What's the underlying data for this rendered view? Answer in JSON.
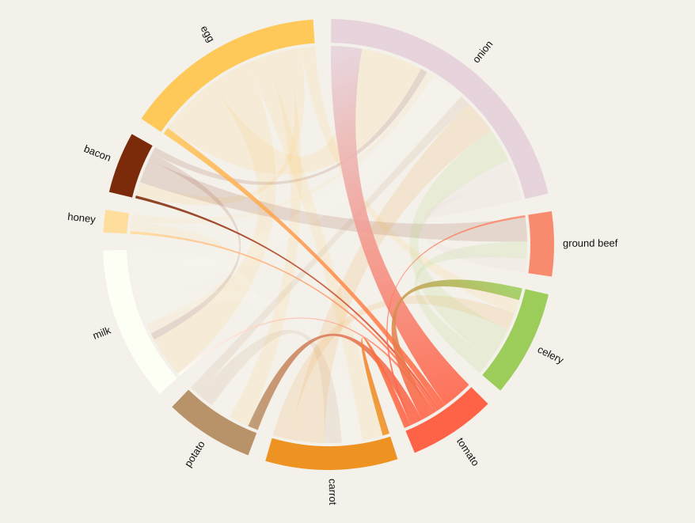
{
  "highlighted_group": "tomato",
  "groups": [
    {
      "name": "onion",
      "color": "#e6d3dc"
    },
    {
      "name": "ground beef",
      "color": "#f88b6e"
    },
    {
      "name": "celery",
      "color": "#9ccd5a"
    },
    {
      "name": "tomato",
      "color": "#ff6347"
    },
    {
      "name": "carrot",
      "color": "#ee9322"
    },
    {
      "name": "potato",
      "color": "#b89268"
    },
    {
      "name": "milk",
      "color": "#fdfff5"
    },
    {
      "name": "honey",
      "color": "#ffdd9c"
    },
    {
      "name": "bacon",
      "color": "#7b2a0a"
    },
    {
      "name": "egg",
      "color": "#ffc95a"
    }
  ],
  "chords": [
    {
      "source": "onion",
      "target": "tomato",
      "value": 9
    },
    {
      "source": "egg",
      "target": "tomato",
      "value": 2
    },
    {
      "source": "bacon",
      "target": "tomato",
      "value": 0.8
    },
    {
      "source": "honey",
      "target": "tomato",
      "value": 0.8
    },
    {
      "source": "milk",
      "target": "tomato",
      "value": 0.8
    },
    {
      "source": "celery",
      "target": "tomato",
      "value": 3.5
    },
    {
      "source": "potato",
      "target": "tomato",
      "value": 3
    },
    {
      "source": "ground beef",
      "target": "tomato",
      "value": 0.6
    },
    {
      "source": "tomato",
      "target": "carrot",
      "value": 2
    },
    {
      "source": "egg",
      "target": "onion",
      "value": 18
    },
    {
      "source": "egg",
      "target": "milk",
      "value": 12
    },
    {
      "source": "egg",
      "target": "carrot",
      "value": 6
    },
    {
      "source": "egg",
      "target": "potato",
      "value": 6
    },
    {
      "source": "egg",
      "target": "bacon",
      "value": 4
    },
    {
      "source": "egg",
      "target": "celery",
      "value": 4
    },
    {
      "source": "bacon",
      "target": "ground beef",
      "value": 7
    },
    {
      "source": "bacon",
      "target": "milk",
      "value": 2
    },
    {
      "source": "bacon",
      "target": "onion",
      "value": 2
    },
    {
      "source": "honey",
      "target": "milk",
      "value": 3
    },
    {
      "source": "honey",
      "target": "onion",
      "value": 2
    },
    {
      "source": "milk",
      "target": "carrot",
      "value": 6
    },
    {
      "source": "milk",
      "target": "onion",
      "value": 10
    },
    {
      "source": "milk",
      "target": "potato",
      "value": 6
    },
    {
      "source": "potato",
      "target": "carrot",
      "value": 5
    },
    {
      "source": "potato",
      "target": "onion",
      "value": 3
    },
    {
      "source": "carrot",
      "target": "onion",
      "value": 10
    },
    {
      "source": "carrot",
      "target": "celery",
      "value": 5
    },
    {
      "source": "celery",
      "target": "onion",
      "value": 10
    },
    {
      "source": "celery",
      "target": "ground beef",
      "value": 5
    },
    {
      "source": "onion",
      "target": "ground beef",
      "value": 4
    },
    {
      "source": "onion",
      "target": "onion",
      "value": 4
    }
  ]
}
